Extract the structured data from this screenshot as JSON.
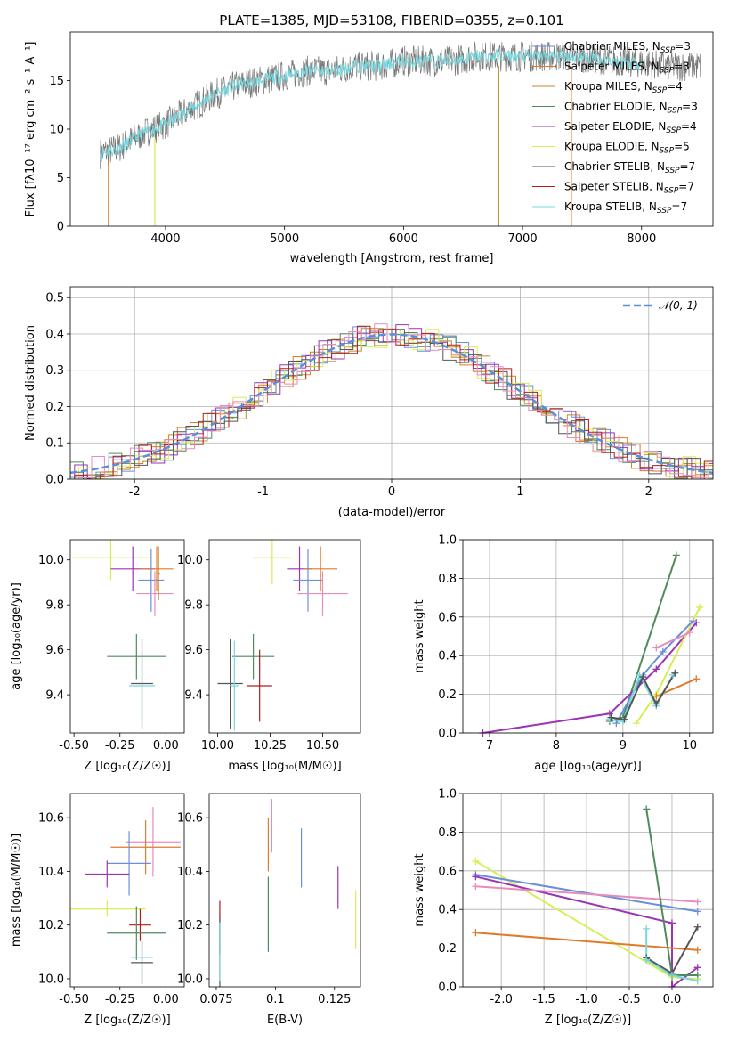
{
  "colors": {
    "Chabrier MILES": "#6a8fdb",
    "Salpeter MILES": "#e07a2b",
    "Kroupa MILES": "#c08a28",
    "Chabrier ELODIE": "#4f8a5d",
    "Salpeter ELODIE": "#9b33b5",
    "Kroupa ELODIE": "#d6ef55",
    "Chabrier STELIB": "#555555",
    "Salpeter STELIB": "#b21c1c",
    "Kroupa STELIB": "#78d7dd",
    "extra": "#e88bbd",
    "normal": "#5b8fd8"
  },
  "chart_data": [
    {
      "type": "line",
      "title": "PLATE=1385, MJD=53108, FIBERID=0355, z=0.101",
      "xlabel": "wavelength [Angstrom, rest frame]",
      "ylabel": "Flux [fλ10⁻¹⁷ erg cm⁻² s⁻¹ A⁻¹]",
      "xlim": [
        3200,
        8600
      ],
      "ylim": [
        0,
        20
      ],
      "xticks": [
        4000,
        5000,
        6000,
        7000,
        8000
      ],
      "yticks": [
        0,
        5,
        10,
        15
      ],
      "legend_position": "right",
      "legend": [
        {
          "name": "Chabrier MILES",
          "nssp": "3"
        },
        {
          "name": "Salpeter MILES",
          "nssp": "3"
        },
        {
          "name": "Kroupa MILES",
          "nssp": "4"
        },
        {
          "name": "Chabrier ELODIE",
          "nssp": "3"
        },
        {
          "name": "Salpeter ELODIE",
          "nssp": "4"
        },
        {
          "name": "Kroupa ELODIE",
          "nssp": "5"
        },
        {
          "name": "Chabrier STELIB",
          "nssp": "7"
        },
        {
          "name": "Salpeter STELIB",
          "nssp": "7"
        },
        {
          "name": "Kroupa STELIB",
          "nssp": "7"
        }
      ],
      "spectrum_envelope": {
        "x": [
          3450,
          3600,
          3800,
          4000,
          4200,
          4400,
          4600,
          4800,
          5000,
          5200,
          5400,
          5600,
          5800,
          6000,
          6200,
          6400,
          6600,
          6800,
          7000,
          7200,
          7400,
          7600,
          7800,
          8000,
          8200,
          8500
        ],
        "y": [
          7.5,
          8.0,
          9.5,
          10.5,
          12.0,
          13.5,
          14.5,
          15.0,
          15.5,
          16.0,
          16.0,
          16.5,
          16.5,
          17.0,
          17.0,
          17.0,
          17.5,
          17.5,
          17.5,
          17.5,
          17.5,
          17.3,
          17.0,
          16.8,
          16.5,
          16.5
        ]
      }
    },
    {
      "type": "line",
      "xlabel": "(data-model)/error",
      "ylabel": "Normed distribution",
      "xlim": [
        -2.5,
        2.5
      ],
      "ylim": [
        0,
        0.53
      ],
      "xticks": [
        -2,
        -1,
        0,
        1,
        2
      ],
      "yticks": [
        0.0,
        0.1,
        0.2,
        0.3,
        0.4,
        0.5
      ],
      "legend": "𝒩(0, 1)",
      "legend_position": "upper right",
      "grid": true,
      "normal_curve": {
        "mu": 0,
        "sigma": 1
      },
      "hist_bin_width": 0.1
    },
    {
      "type": "scatter",
      "xlabel": "Z [log₁₀(Z/Z☉)]",
      "ylabel": "age  [log₁₀(age/yr)]",
      "xlim": [
        -0.52,
        0.1
      ],
      "ylim": [
        9.23,
        10.09
      ],
      "xticks": [
        -0.5,
        -0.25,
        0.0
      ],
      "yticks": [
        9.4,
        9.6,
        9.8,
        10.0
      ],
      "points": [
        {
          "model": "Kroupa ELODIE",
          "x": -0.3,
          "y": 10.01,
          "xerr": 0.21,
          "yerr": 0.1
        },
        {
          "model": "Salpeter ELODIE",
          "x": -0.18,
          "y": 9.96,
          "xerr": 0.12,
          "yerr": 0.1
        },
        {
          "model": "Salpeter MILES",
          "x": -0.05,
          "y": 9.96,
          "xerr": 0.09,
          "yerr": 0.1
        },
        {
          "model": "Chabrier MILES",
          "x": -0.08,
          "y": 9.91,
          "xerr": 0.07,
          "yerr": 0.14
        },
        {
          "model": "extra",
          "x": -0.06,
          "y": 9.85,
          "xerr": 0.1,
          "yerr": 0.1
        },
        {
          "model": "Kroupa MILES",
          "x": -0.04,
          "y": 9.94,
          "xerr": 0.01,
          "yerr": 0.12
        },
        {
          "model": "Chabrier ELODIE",
          "x": -0.16,
          "y": 9.57,
          "xerr": 0.16,
          "yerr": 0.1
        },
        {
          "model": "Chabrier STELIB",
          "x": -0.13,
          "y": 9.45,
          "xerr": 0.06,
          "yerr": 0.2
        },
        {
          "model": "Kroupa STELIB",
          "x": -0.13,
          "y": 9.44,
          "xerr": 0.07,
          "yerr": 0.15
        }
      ]
    },
    {
      "type": "scatter",
      "xlabel": "mass [log₁₀(M/M☉)]",
      "ylabel": "",
      "xlim": [
        9.96,
        10.68
      ],
      "ylim": [
        9.23,
        10.09
      ],
      "xticks": [
        10.0,
        10.25,
        10.5
      ],
      "yticks": [
        9.4,
        9.6,
        9.8,
        10.0
      ],
      "points": [
        {
          "model": "Kroupa ELODIE",
          "x": 10.26,
          "y": 10.01,
          "xerr": 0.09,
          "yerr": 0.12
        },
        {
          "model": "Salpeter ELODIE",
          "x": 10.39,
          "y": 9.96,
          "xerr": 0.06,
          "yerr": 0.1
        },
        {
          "model": "Salpeter MILES",
          "x": 10.49,
          "y": 9.96,
          "xerr": 0.08,
          "yerr": 0.1
        },
        {
          "model": "Chabrier MILES",
          "x": 10.43,
          "y": 9.91,
          "xerr": 0.07,
          "yerr": 0.14
        },
        {
          "model": "extra",
          "x": 10.5,
          "y": 9.85,
          "xerr": 0.12,
          "yerr": 0.1
        },
        {
          "model": "Chabrier ELODIE",
          "x": 10.17,
          "y": 9.57,
          "xerr": 0.1,
          "yerr": 0.1
        },
        {
          "model": "Chabrier STELIB",
          "x": 10.06,
          "y": 9.45,
          "xerr": 0.06,
          "yerr": 0.2
        },
        {
          "model": "Salpeter STELIB",
          "x": 10.2,
          "y": 9.44,
          "xerr": 0.06,
          "yerr": 0.16
        },
        {
          "model": "Kroupa STELIB",
          "x": 10.08,
          "y": 9.44,
          "xerr": 0.02,
          "yerr": 0.2
        }
      ]
    },
    {
      "type": "line",
      "xlabel": "age  [log₁₀(age/yr)]",
      "ylabel": "mass weight",
      "xlim": [
        6.6,
        10.35
      ],
      "ylim": [
        0,
        1.0
      ],
      "xticks": [
        7,
        8,
        9,
        10
      ],
      "yticks": [
        0.0,
        0.2,
        0.4,
        0.6,
        0.8,
        1.0
      ],
      "grid": true,
      "series": [
        {
          "model": "Chabrier ELODIE",
          "x": [
            8.8,
            9.0,
            9.8
          ],
          "y": [
            0.06,
            0.08,
            0.92
          ]
        },
        {
          "model": "Salpeter ELODIE",
          "x": [
            6.9,
            8.8,
            9.5,
            10.1
          ],
          "y": [
            0.0,
            0.1,
            0.33,
            0.57
          ]
        },
        {
          "model": "Kroupa ELODIE",
          "x": [
            9.2,
            9.5,
            10.15
          ],
          "y": [
            0.05,
            0.2,
            0.65
          ]
        },
        {
          "model": "Salpeter MILES",
          "x": [
            9.5,
            10.1
          ],
          "y": [
            0.19,
            0.28
          ]
        },
        {
          "model": "Chabrier MILES",
          "x": [
            8.9,
            9.3,
            9.6,
            10.05
          ],
          "y": [
            0.05,
            0.3,
            0.42,
            0.58
          ]
        },
        {
          "model": "extra",
          "x": [
            9.5,
            10.0
          ],
          "y": [
            0.44,
            0.52
          ]
        },
        {
          "model": "Kroupa STELIB",
          "x": [
            8.8,
            9.0,
            9.25,
            9.5,
            9.75
          ],
          "y": [
            0.07,
            0.06,
            0.3,
            0.14,
            0.3
          ]
        },
        {
          "model": "Chabrier STELIB",
          "x": [
            8.82,
            9.02,
            9.3,
            9.5,
            9.78
          ],
          "y": [
            0.08,
            0.07,
            0.29,
            0.15,
            0.31
          ]
        }
      ]
    },
    {
      "type": "scatter",
      "xlabel": "Z [log₁₀(Z/Z☉)]",
      "ylabel": "mass [log₁₀(M/M☉)]",
      "xlim": [
        -0.52,
        0.1
      ],
      "ylim": [
        9.97,
        10.69
      ],
      "xticks": [
        -0.5,
        -0.25,
        0.0
      ],
      "yticks": [
        10.0,
        10.2,
        10.4,
        10.6
      ],
      "points": [
        {
          "model": "extra",
          "x": -0.07,
          "y": 10.51,
          "xerr": 0.15,
          "yerr": 0.13
        },
        {
          "model": "Salpeter MILES",
          "x": -0.11,
          "y": 10.49,
          "xerr": 0.19,
          "yerr": 0.1
        },
        {
          "model": "Chabrier MILES",
          "x": -0.2,
          "y": 10.43,
          "xerr": 0.12,
          "yerr": 0.12
        },
        {
          "model": "Salpeter ELODIE",
          "x": -0.32,
          "y": 10.39,
          "xerr": 0.12,
          "yerr": 0.05
        },
        {
          "model": "Kroupa ELODIE",
          "x": -0.32,
          "y": 10.26,
          "xerr": 0.21,
          "yerr": 0.03
        },
        {
          "model": "Salpeter STELIB",
          "x": -0.14,
          "y": 10.2,
          "xerr": 0.06,
          "yerr": 0.06
        },
        {
          "model": "Chabrier ELODIE",
          "x": -0.16,
          "y": 10.17,
          "xerr": 0.16,
          "yerr": 0.1
        },
        {
          "model": "Kroupa STELIB",
          "x": -0.13,
          "y": 10.08,
          "xerr": 0.06,
          "yerr": 0.1
        },
        {
          "model": "Chabrier STELIB",
          "x": -0.13,
          "y": 10.06,
          "xerr": 0.06,
          "yerr": 0.08
        }
      ]
    },
    {
      "type": "scatter",
      "xlabel": "E(B-V)",
      "ylabel": "",
      "xlim": [
        0.072,
        0.136
      ],
      "ylim": [
        9.97,
        10.69
      ],
      "xticks": [
        0.075,
        0.1,
        0.125
      ],
      "yticks": [
        10.0,
        10.2,
        10.4,
        10.6
      ],
      "points": [
        {
          "model": "extra",
          "x": 0.0985,
          "y": 10.57,
          "yerr": 0.1
        },
        {
          "model": "Salpeter MILES",
          "x": 0.097,
          "y": 10.5,
          "yerr": 0.1
        },
        {
          "model": "Chabrier MILES",
          "x": 0.111,
          "y": 10.45,
          "yerr": 0.11
        },
        {
          "model": "Salpeter ELODIE",
          "x": 0.1265,
          "y": 10.34,
          "yerr": 0.08
        },
        {
          "model": "Kroupa ELODIE",
          "x": 0.134,
          "y": 10.22,
          "yerr": 0.11
        },
        {
          "model": "Chabrier ELODIE",
          "x": 0.097,
          "y": 10.24,
          "yerr": 0.14
        },
        {
          "model": "Salpeter STELIB",
          "x": 0.0765,
          "y": 10.19,
          "yerr": 0.1
        },
        {
          "model": "Chabrier STELIB",
          "x": 0.0765,
          "y": 10.1,
          "yerr": 0.13
        },
        {
          "model": "Kroupa STELIB",
          "x": 0.0765,
          "y": 10.1,
          "yerr": 0.11
        }
      ]
    },
    {
      "type": "line",
      "xlabel": "Z [log₁₀(Z/Z☉)]",
      "ylabel": "mass weight",
      "xlim": [
        -2.45,
        0.48
      ],
      "ylim": [
        0,
        1.0
      ],
      "xticks": [
        -2.0,
        -1.5,
        -1.0,
        -0.5,
        0.0
      ],
      "yticks": [
        0.0,
        0.2,
        0.4,
        0.6,
        0.8,
        1.0
      ],
      "grid": true,
      "series": [
        {
          "model": "Kroupa ELODIE",
          "x": [
            -2.3,
            0.0,
            0.3
          ],
          "y": [
            0.65,
            0.05,
            0.04
          ]
        },
        {
          "model": "Chabrier MILES",
          "x": [
            -2.3,
            0.3
          ],
          "y": [
            0.58,
            0.39
          ]
        },
        {
          "model": "Salpeter ELODIE",
          "x": [
            -2.3,
            -0.0,
            0.0,
            0.3
          ],
          "y": [
            0.57,
            0.33,
            0.0,
            0.1
          ]
        },
        {
          "model": "extra",
          "x": [
            -2.3,
            0.3
          ],
          "y": [
            0.52,
            0.44
          ]
        },
        {
          "model": "Salpeter MILES",
          "x": [
            -2.3,
            0.3
          ],
          "y": [
            0.28,
            0.19
          ]
        },
        {
          "model": "Chabrier ELODIE",
          "x": [
            -0.3,
            0.0,
            0.3
          ],
          "y": [
            0.92,
            0.06,
            0.06
          ]
        },
        {
          "model": "Chabrier STELIB",
          "x": [
            -0.3,
            0.0,
            0.3
          ],
          "y": [
            0.15,
            0.07,
            0.31
          ]
        },
        {
          "model": "Kroupa STELIB",
          "x": [
            -0.3,
            -0.3,
            0.0,
            0.3
          ],
          "y": [
            0.3,
            0.14,
            0.06,
            0.03
          ]
        }
      ]
    }
  ]
}
